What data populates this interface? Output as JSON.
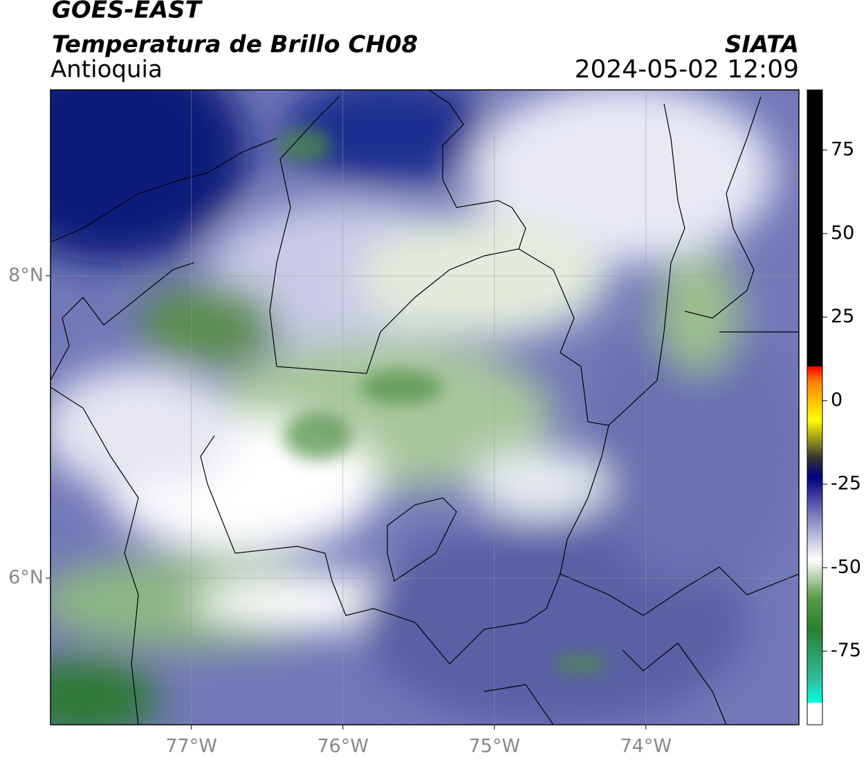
{
  "header": {
    "title": "GOES-EAST",
    "subtitle": "Temperatura de Brillo CH08",
    "region": "Antioquia",
    "source": "SIATA",
    "datetime": "2024-05-02 12:09"
  },
  "map": {
    "xlim": [
      -77.93,
      -72.99
    ],
    "ylim": [
      5.03,
      9.23
    ],
    "xticks": [
      {
        "value": -77,
        "label": "77°W"
      },
      {
        "value": -76,
        "label": "76°W"
      },
      {
        "value": -75,
        "label": "75°W"
      },
      {
        "value": -74,
        "label": "74°W"
      }
    ],
    "yticks": [
      {
        "value": 8,
        "label": "8°N"
      },
      {
        "value": 6,
        "label": "6°N"
      }
    ],
    "grid": true,
    "colorbar": {
      "clim": [
        -97,
        93
      ],
      "ticks": [
        75,
        50,
        25,
        0,
        -25,
        -50,
        -75
      ]
    }
  }
}
